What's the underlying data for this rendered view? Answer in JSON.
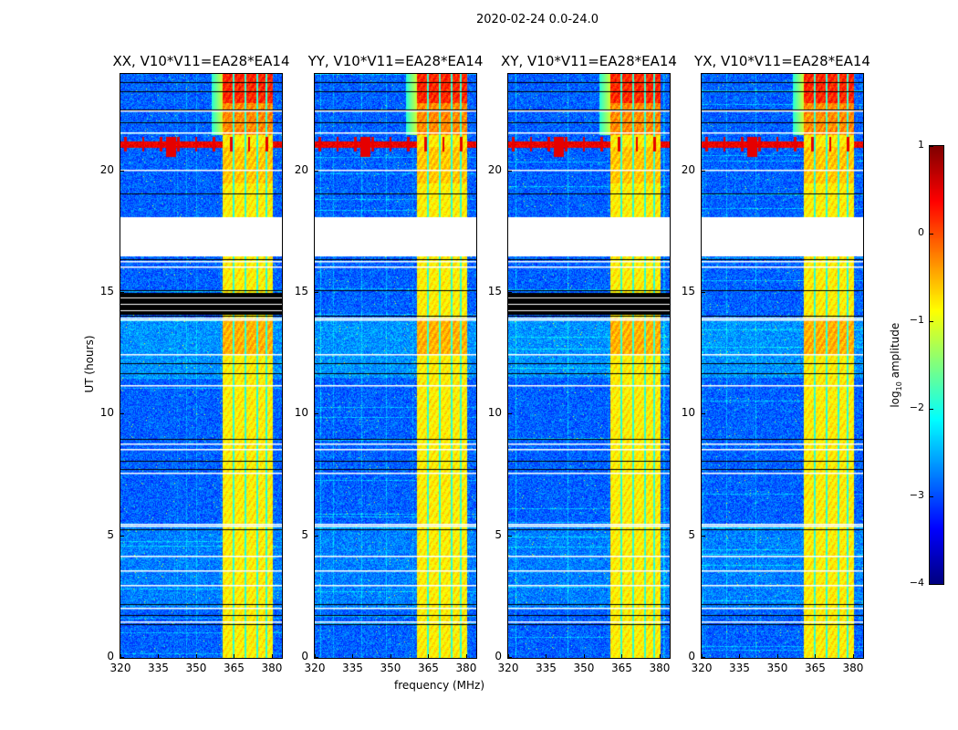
{
  "chart_data": {
    "type": "heatmap",
    "title": "2020-02-24 0.0-24.0",
    "xlabel": "frequency (MHz)",
    "ylabel": "UT (hours)",
    "xlim": [
      320,
      384
    ],
    "ylim": [
      0,
      24
    ],
    "xticks": [
      "320",
      "335",
      "350",
      "365",
      "380"
    ],
    "yticks": [
      "0",
      "5",
      "10",
      "15",
      "20"
    ],
    "panels": [
      {
        "title": "XX, V10*V11=EA28*EA14",
        "black_band_hours": [
          14.1,
          15.0
        ]
      },
      {
        "title": "YY, V10*V11=EA28*EA14",
        "black_band_hours": null
      },
      {
        "title": "XY, V10*V11=EA28*EA14",
        "black_band_hours": [
          14.1,
          15.0
        ]
      },
      {
        "title": "YX, V10*V11=EA28*EA14",
        "black_band_hours": null
      }
    ],
    "flagged_gap_hours": [
      16.5,
      18.1
    ],
    "rfi_band_mhz": [
      360.5,
      380.5
    ],
    "rfi_strong_after_hours": 21.5,
    "rfi_line_hours": 21.1,
    "background_log_amplitude": -2.9,
    "rfi_log_amplitude": -0.8,
    "colorbar": {
      "label": "log10 amplitude",
      "label_main": "log",
      "label_sub": "10",
      "label_rest": " amplitude",
      "range": [
        -4,
        1
      ],
      "ticks": [
        "1",
        "0",
        "−1",
        "−2",
        "−3",
        "−4"
      ],
      "colormap": "jet"
    }
  }
}
